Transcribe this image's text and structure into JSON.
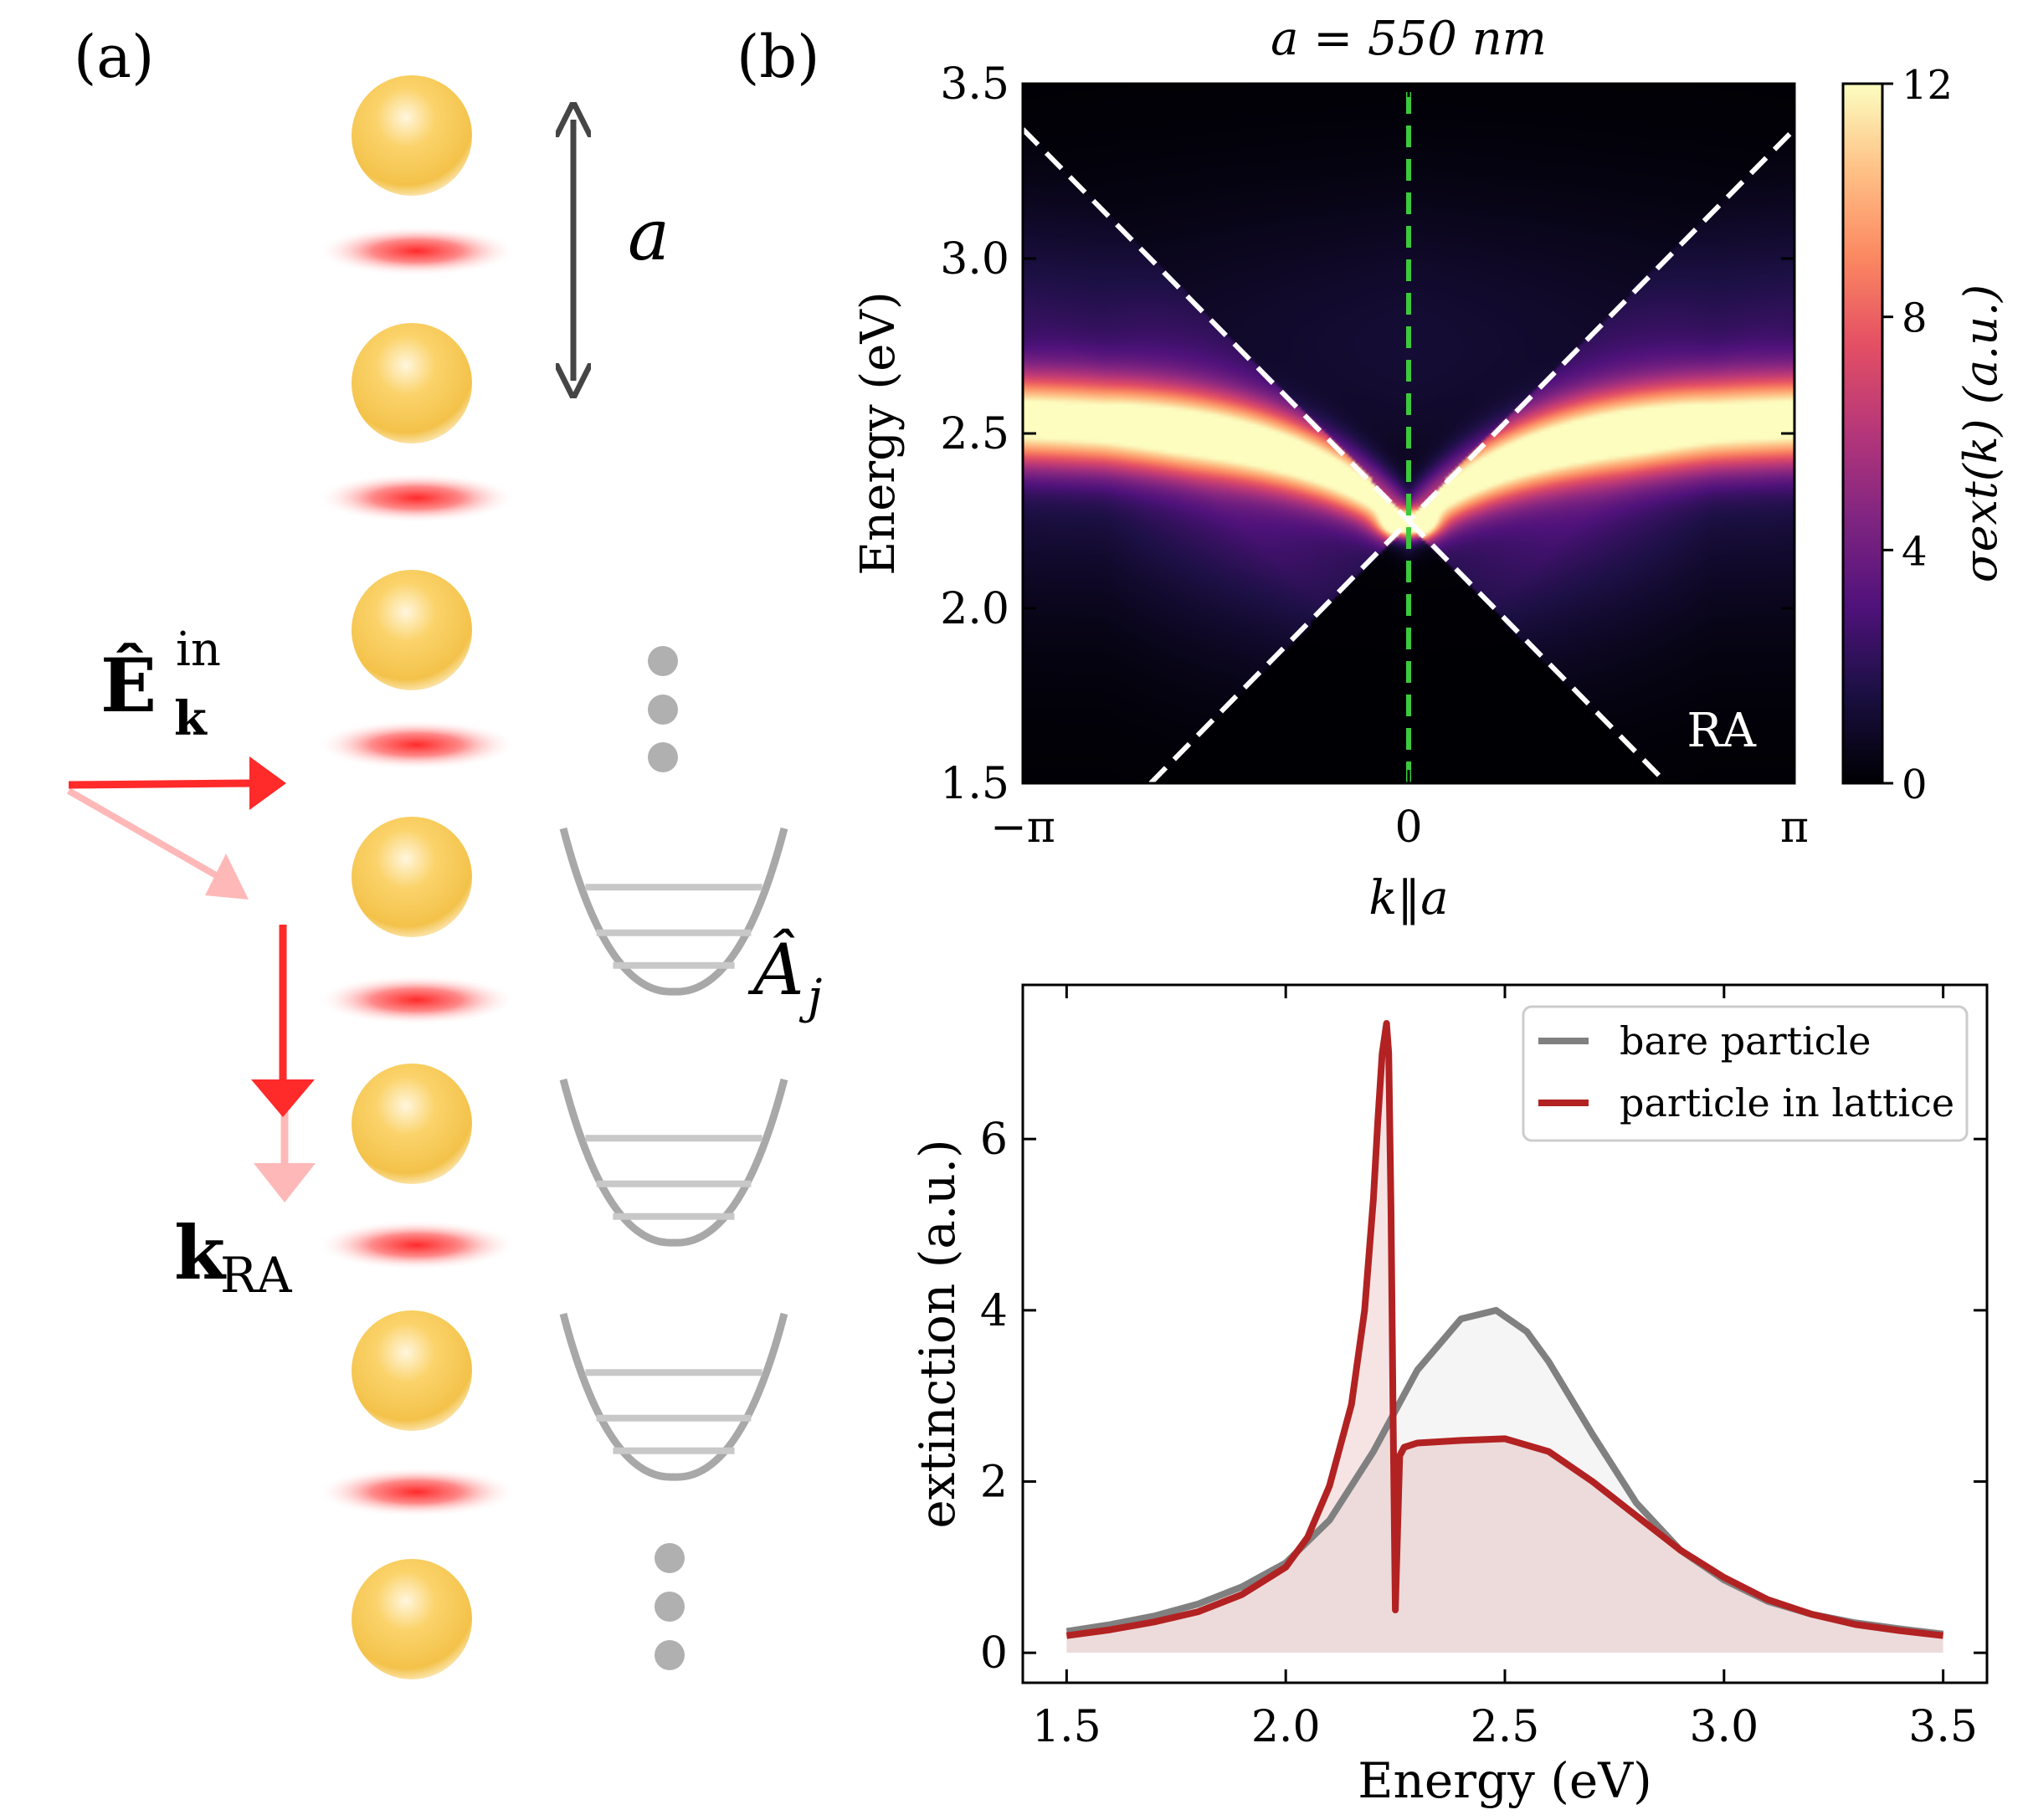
{
  "panel_labels": {
    "a": "(a)",
    "b": "(b)"
  },
  "schematic": {
    "lattice_constant_label": "a",
    "incident_field_label": "Ê",
    "incident_field_sub": "k",
    "incident_field_sup": "in",
    "ra_wavevector_label": "k",
    "ra_wavevector_sub": "RA",
    "emitter_operator_label": "Â",
    "emitter_operator_sub": "j",
    "colors": {
      "particle": "#f5c042",
      "field_lobe": "#ff3b3b",
      "arrow_main": "#ff2a2a",
      "arrow_faint": "#ffb3b3",
      "emitter": "#a8a8a8",
      "spacing_arrow": "#454545"
    }
  },
  "chart_data": [
    {
      "type": "heatmap",
      "title": "a = 550 nm",
      "xlabel": "k‖a",
      "ylabel": "Energy (eV)",
      "xlim": [
        -3.14159,
        3.14159
      ],
      "ylim": [
        1.5,
        3.5
      ],
      "x_ticks": [
        -3.14159,
        0,
        3.14159
      ],
      "x_tick_labels": [
        "−π",
        "0",
        "π"
      ],
      "y_ticks": [
        1.5,
        2.0,
        2.5,
        3.0,
        3.5
      ],
      "y_tick_labels": [
        "1.5",
        "2.0",
        "2.5",
        "3.0",
        "3.5"
      ],
      "colorbar": {
        "label": "σext(k) (a.u.)",
        "range": [
          0,
          12
        ],
        "ticks": [
          0,
          4,
          8,
          12
        ],
        "tick_labels": [
          "0",
          "4",
          "8",
          "12"
        ],
        "colormap": "magma"
      },
      "annotation": "RA",
      "overlay_lines": [
        {
          "name": "RA+",
          "style": "dashed",
          "color": "#ffffff",
          "points": [
            [
              -3.14159,
              3.37
            ],
            [
              0,
              2.25
            ],
            [
              3.14159,
              3.37
            ]
          ]
        },
        {
          "name": "RA-",
          "style": "dashed",
          "color": "#ffffff",
          "points": [
            [
              -2.1,
              1.5
            ],
            [
              0,
              2.25
            ],
            [
              2.1,
              1.5
            ]
          ]
        },
        {
          "name": "k0",
          "style": "dashed",
          "color": "#3cc93c",
          "points": [
            [
              0,
              1.5
            ],
            [
              0,
              3.5
            ]
          ]
        }
      ],
      "band": {
        "E_far": 2.55,
        "E_center": 2.24,
        "peak_value": 12
      }
    },
    {
      "type": "line",
      "xlabel": "Energy (eV)",
      "ylabel": "extinction (a.u.)",
      "xlim": [
        1.4,
        3.6
      ],
      "ylim": [
        -0.35,
        7.8
      ],
      "x_ticks": [
        1.5,
        2.0,
        2.5,
        3.0,
        3.5
      ],
      "x_tick_labels": [
        "1.5",
        "2.0",
        "2.5",
        "3.0",
        "3.5"
      ],
      "y_ticks": [
        0,
        2,
        4,
        6
      ],
      "y_tick_labels": [
        "0",
        "2",
        "4",
        "6"
      ],
      "legend_position": "top-right",
      "series": [
        {
          "name": "bare particle",
          "color": "#808080",
          "x": [
            1.5,
            1.6,
            1.7,
            1.8,
            1.9,
            2.0,
            2.1,
            2.2,
            2.3,
            2.4,
            2.48,
            2.55,
            2.6,
            2.7,
            2.8,
            2.9,
            3.0,
            3.1,
            3.2,
            3.3,
            3.4,
            3.5
          ],
          "y": [
            0.25,
            0.33,
            0.43,
            0.57,
            0.77,
            1.05,
            1.55,
            2.35,
            3.3,
            3.9,
            4.0,
            3.75,
            3.4,
            2.55,
            1.75,
            1.2,
            0.85,
            0.6,
            0.45,
            0.35,
            0.28,
            0.22
          ]
        },
        {
          "name": "particle in lattice",
          "color": "#b22222",
          "x": [
            1.5,
            1.6,
            1.7,
            1.8,
            1.9,
            2.0,
            2.05,
            2.1,
            2.15,
            2.18,
            2.2,
            2.21,
            2.22,
            2.23,
            2.235,
            2.24,
            2.245,
            2.25,
            2.255,
            2.26,
            2.27,
            2.3,
            2.4,
            2.5,
            2.6,
            2.7,
            2.8,
            2.9,
            3.0,
            3.1,
            3.2,
            3.3,
            3.4,
            3.5
          ],
          "y": [
            0.2,
            0.27,
            0.36,
            0.48,
            0.68,
            1.0,
            1.35,
            1.95,
            2.9,
            4.0,
            5.3,
            6.2,
            7.0,
            7.35,
            7.0,
            5.2,
            2.7,
            0.5,
            1.4,
            2.3,
            2.4,
            2.45,
            2.48,
            2.5,
            2.35,
            2.0,
            1.6,
            1.2,
            0.88,
            0.62,
            0.45,
            0.33,
            0.26,
            0.2
          ]
        }
      ]
    }
  ]
}
